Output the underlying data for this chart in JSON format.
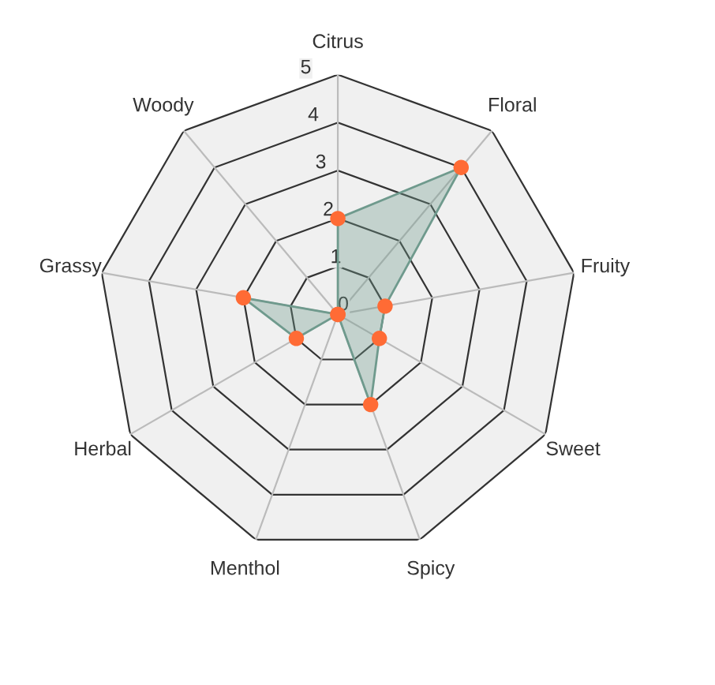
{
  "chart_data": {
    "type": "radar",
    "categories": [
      "Citrus",
      "Floral",
      "Fruity",
      "Sweet",
      "Spicy",
      "Menthol",
      "Herbal",
      "Grassy",
      "Woody"
    ],
    "series": [
      {
        "color": "#6f9a8d",
        "colors": [
          "#ff6b35",
          "#ff6b35",
          "#ff6b35",
          "#ff6b35",
          "#ff6b35",
          "#ff6b35",
          "#ff6b35",
          "#ff6b35",
          "#ff6b35"
        ],
        "values": [
          2,
          4,
          1,
          1,
          2,
          0,
          1,
          2,
          0
        ]
      }
    ],
    "ylim": [
      0,
      5
    ],
    "yticks": [
      0,
      1,
      2,
      3,
      4,
      5
    ],
    "grid": true,
    "marker": "circle"
  }
}
